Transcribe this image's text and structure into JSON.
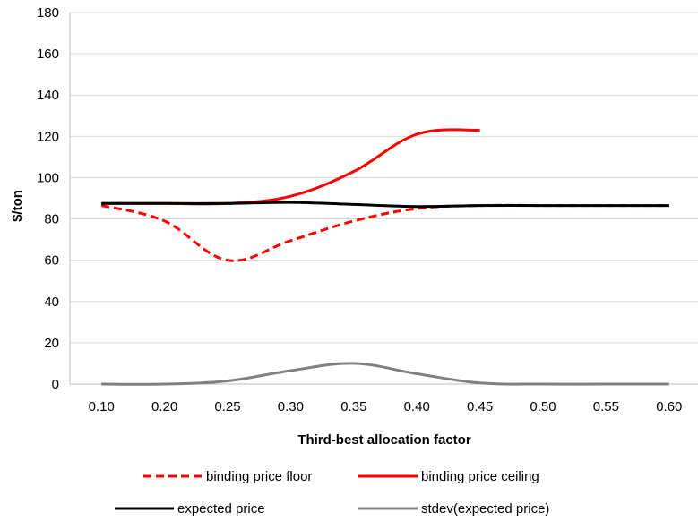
{
  "chart_data": {
    "type": "line",
    "title": "",
    "xlabel": "Third-best allocation factor",
    "ylabel": "$/ton",
    "categories": [
      "0.10",
      "0.20",
      "0.25",
      "0.30",
      "0.35",
      "0.40",
      "0.45",
      "0.50",
      "0.55",
      "0.60"
    ],
    "ylim": [
      0,
      180
    ],
    "yticks": [
      "0",
      "20",
      "40",
      "60",
      "80",
      "100",
      "120",
      "140",
      "160",
      "180"
    ],
    "grid": "horizontal",
    "legend_position": "bottom",
    "series": [
      {
        "name": "binding price floor",
        "color": "#ff0000",
        "style": "dashed",
        "values": [
          86.5,
          79,
          60,
          69.5,
          79,
          85,
          86.5,
          86.5,
          86.5,
          86.5
        ]
      },
      {
        "name": "binding price ceiling",
        "color": "#ff0000",
        "style": "solid",
        "values": [
          87.5,
          87.5,
          87.5,
          91,
          103,
          121,
          123,
          null,
          null,
          null
        ]
      },
      {
        "name": "expected price",
        "color": "#000000",
        "style": "solid",
        "values": [
          87.5,
          87.5,
          87.5,
          88,
          87,
          86,
          86.5,
          86.5,
          86.5,
          86.5
        ]
      },
      {
        "name": "stdev(expected price)",
        "color": "#808080",
        "style": "solid",
        "values": [
          0,
          0,
          1.5,
          6.5,
          10,
          5,
          0.5,
          0,
          0,
          0
        ]
      }
    ]
  }
}
